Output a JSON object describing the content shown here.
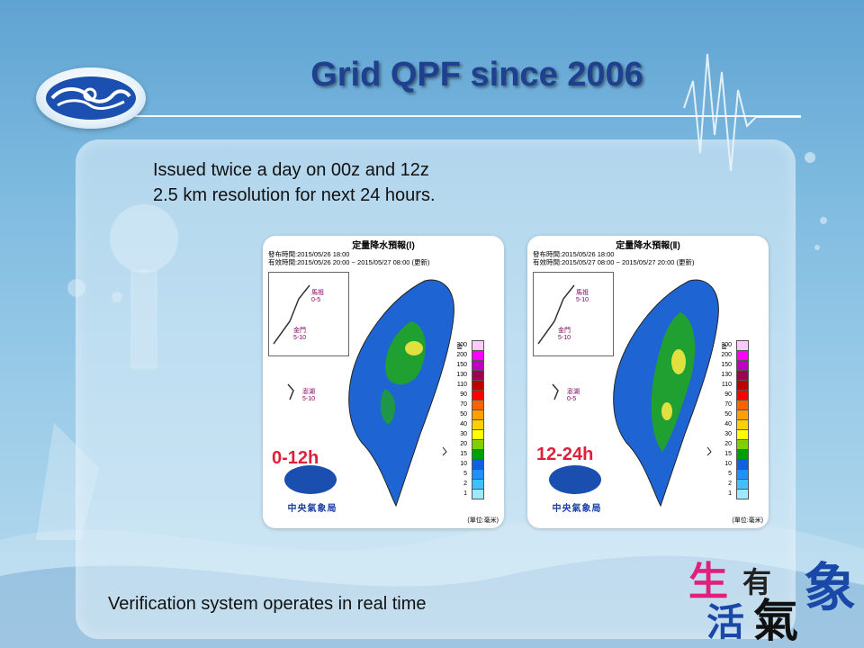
{
  "slide": {
    "title": "Grid QPF since  2006",
    "bullets": [
      "Issued twice a day on 00z and 12z",
      "2.5 km resolution for next 24 hours."
    ],
    "footer": "Verification system operates in real time",
    "slogan": {
      "c1": "生",
      "c2": "活",
      "c3": "有",
      "c4": "氣",
      "c5": "象"
    }
  },
  "maps": [
    {
      "map_title": "定量降水預報(Ⅰ)",
      "issue_line": "發布時間:2015/05/26 18:00",
      "valid_line": "有效時間:2015/05/26 20:00 ~ 2015/05/27 08:00  (更新)",
      "islands": [
        {
          "name": "馬祖",
          "range": "0-5"
        },
        {
          "name": "金門",
          "range": "5-10"
        },
        {
          "name": "澎湖",
          "range": "5-10"
        }
      ],
      "period": "0-12h"
    },
    {
      "map_title": "定量降水預報(Ⅱ)",
      "issue_line": "發布時間:2015/05/26 18:00",
      "valid_line": "有效時間:2015/05/27 08:00 ~ 2015/05/27 20:00  (更新)",
      "islands": [
        {
          "name": "馬祖",
          "range": "5-10"
        },
        {
          "name": "金門",
          "range": "5-10"
        },
        {
          "name": "澎湖",
          "range": "0-5"
        }
      ],
      "period": "12-24h"
    }
  ],
  "legend": {
    "ge_symbol": "≧",
    "levels": [
      "300",
      "200",
      "150",
      "130",
      "110",
      "90",
      "70",
      "50",
      "40",
      "30",
      "20",
      "15",
      "10",
      "5",
      "2",
      "1"
    ],
    "colors": [
      "#ffc8ff",
      "#ff00ff",
      "#c000c0",
      "#a00050",
      "#c00000",
      "#ff0000",
      "#ff6000",
      "#ffa000",
      "#ffd000",
      "#ffff00",
      "#80d000",
      "#00a000",
      "#1060e0",
      "#2090ff",
      "#40c0ff",
      "#a0e8ff"
    ],
    "unit": "(單位:毫米)"
  },
  "org_name": "中央氣象局",
  "colors": {
    "title": "#1f3f8f",
    "period": "#e0203a",
    "map_base": "#1e64d2",
    "map_wet": "#20a030",
    "map_peak": "#e0e040"
  }
}
